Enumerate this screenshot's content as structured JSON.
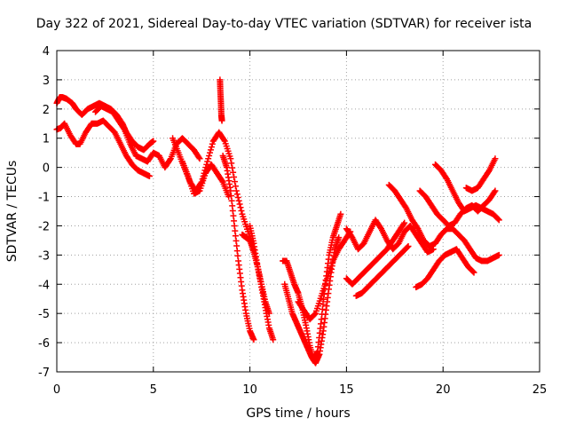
{
  "chart_data": {
    "type": "scatter",
    "title": "Day 322 of 2021, Sidereal Day-to-day VTEC variation (SDTVAR) for receiver ista",
    "xlabel": "GPS time / hours",
    "ylabel": "SDTVAR / TECUs",
    "xlim": [
      0,
      25
    ],
    "ylim": [
      -7,
      4
    ],
    "xticks": [
      0,
      5,
      10,
      15,
      20,
      25
    ],
    "yticks": [
      -7,
      -6,
      -5,
      -4,
      -3,
      -2,
      -1,
      0,
      1,
      2,
      3,
      4
    ],
    "grid": true,
    "marker": "plus",
    "color": "#ff0000",
    "series": [
      {
        "x": [
          0.0,
          0.15,
          0.3,
          0.5,
          0.8,
          1.0,
          1.3,
          1.6,
          1.9,
          2.2,
          2.5,
          2.8,
          3.1,
          3.4,
          3.6,
          3.9,
          4.2,
          4.5,
          4.8,
          5.0
        ],
        "y": [
          2.2,
          2.4,
          2.4,
          2.35,
          2.2,
          2.0,
          1.8,
          2.0,
          2.1,
          2.2,
          2.1,
          2.0,
          1.8,
          1.5,
          1.2,
          0.9,
          0.7,
          0.6,
          0.8,
          0.9
        ]
      },
      {
        "x": [
          0.0,
          0.2,
          0.4,
          0.7,
          1.0,
          1.2,
          1.5,
          1.8,
          2.1,
          2.4,
          2.7,
          3.0,
          3.3,
          3.6,
          3.9,
          4.2,
          4.5,
          4.8
        ],
        "y": [
          1.3,
          1.35,
          1.5,
          1.1,
          0.8,
          0.8,
          1.2,
          1.5,
          1.5,
          1.6,
          1.4,
          1.2,
          0.8,
          0.4,
          0.1,
          -0.1,
          -0.2,
          -0.3
        ]
      },
      {
        "x": [
          2.0,
          2.3,
          2.6,
          2.9,
          3.2,
          3.5,
          3.8,
          4.1,
          4.4,
          4.7,
          5.0,
          5.3,
          5.6,
          5.9,
          6.2,
          6.5,
          6.8,
          7.1,
          7.4
        ],
        "y": [
          1.9,
          2.1,
          2.0,
          1.9,
          1.6,
          1.3,
          0.8,
          0.4,
          0.3,
          0.2,
          0.5,
          0.4,
          0.0,
          0.3,
          0.8,
          1.0,
          0.8,
          0.6,
          0.3
        ]
      },
      {
        "x": [
          6.0,
          6.3,
          6.6,
          6.9,
          7.2,
          7.5,
          7.8,
          8.1,
          8.4,
          8.7,
          9.0,
          9.3,
          9.6,
          9.9,
          10.2
        ],
        "y": [
          1.0,
          0.5,
          0.0,
          -0.5,
          -0.8,
          -0.5,
          0.2,
          0.9,
          1.2,
          0.9,
          0.3,
          -0.8,
          -1.6,
          -2.2,
          -2.8
        ]
      },
      {
        "x": [
          6.5,
          6.8,
          7.1,
          7.4,
          7.7,
          8.0,
          8.3,
          8.6,
          8.9
        ],
        "y": [
          0.2,
          -0.3,
          -0.9,
          -0.8,
          -0.2,
          0.1,
          -0.2,
          -0.5,
          -1.0
        ]
      },
      {
        "x": [
          8.45,
          8.47,
          8.5,
          8.52,
          8.55
        ],
        "y": [
          3.0,
          2.6,
          2.2,
          1.8,
          1.6
        ]
      },
      {
        "x": [
          8.6,
          8.8,
          9.0,
          9.2,
          9.4,
          9.6,
          9.8,
          10.0,
          10.2
        ],
        "y": [
          0.4,
          0.0,
          -0.8,
          -2.0,
          -3.2,
          -4.2,
          -5.0,
          -5.6,
          -5.9
        ]
      },
      {
        "x": [
          9.6,
          9.8,
          10.0,
          10.2,
          10.4,
          10.6,
          10.8,
          11.0,
          11.2
        ],
        "y": [
          -2.3,
          -2.4,
          -2.5,
          -2.9,
          -3.4,
          -4.1,
          -4.8,
          -5.5,
          -5.9
        ]
      },
      {
        "x": [
          10.0,
          10.2,
          10.4,
          10.6,
          10.8,
          11.0
        ],
        "y": [
          -2.0,
          -2.6,
          -3.4,
          -4.0,
          -4.6,
          -5.0
        ]
      },
      {
        "x": [
          11.7,
          11.9,
          12.1,
          12.3,
          12.5,
          12.7,
          12.9,
          13.1,
          13.3,
          13.5,
          13.7,
          13.9,
          14.1,
          14.3,
          14.5,
          14.7
        ],
        "y": [
          -3.2,
          -3.2,
          -3.6,
          -4.0,
          -4.3,
          -4.8,
          -5.4,
          -6.1,
          -6.6,
          -6.3,
          -5.2,
          -4.0,
          -3.0,
          -2.4,
          -2.0,
          -1.6
        ]
      },
      {
        "x": [
          11.8,
          12.0,
          12.2,
          12.4,
          12.6,
          12.8,
          13.0,
          13.2,
          13.4,
          13.6,
          13.8,
          14.0,
          14.2,
          14.4,
          14.6
        ],
        "y": [
          -4.0,
          -4.5,
          -5.0,
          -5.3,
          -5.6,
          -5.9,
          -6.2,
          -6.5,
          -6.7,
          -6.4,
          -5.6,
          -4.6,
          -3.6,
          -2.8,
          -2.4
        ]
      },
      {
        "x": [
          12.5,
          12.8,
          13.1,
          13.4,
          13.7,
          14.0,
          14.3,
          14.6,
          14.9,
          15.2
        ],
        "y": [
          -4.6,
          -4.9,
          -5.2,
          -5.0,
          -4.4,
          -3.8,
          -3.2,
          -2.8,
          -2.5,
          -2.2
        ]
      },
      {
        "x": [
          15.0,
          15.3,
          15.6,
          15.9,
          16.2,
          16.5,
          16.8,
          17.1,
          17.4,
          17.7,
          18.0,
          18.3,
          18.6,
          18.9,
          19.2,
          19.5
        ],
        "y": [
          -2.1,
          -2.4,
          -2.8,
          -2.6,
          -2.2,
          -1.8,
          -2.1,
          -2.5,
          -2.8,
          -2.6,
          -2.2,
          -2.0,
          -2.3,
          -2.6,
          -2.9,
          -2.8
        ]
      },
      {
        "x": [
          15.0,
          15.3,
          15.6,
          15.9,
          16.2,
          16.5,
          16.8,
          17.1,
          17.4,
          17.7,
          18.0
        ],
        "y": [
          -3.8,
          -4.0,
          -3.8,
          -3.6,
          -3.4,
          -3.2,
          -3.0,
          -2.8,
          -2.5,
          -2.2,
          -1.9
        ]
      },
      {
        "x": [
          15.5,
          15.8,
          16.1,
          16.4,
          16.7,
          17.0,
          17.3,
          17.6,
          17.9,
          18.2
        ],
        "y": [
          -4.4,
          -4.3,
          -4.1,
          -3.9,
          -3.7,
          -3.5,
          -3.3,
          -3.1,
          -2.9,
          -2.7
        ]
      },
      {
        "x": [
          17.2,
          17.5,
          17.8,
          18.1,
          18.4,
          18.7,
          19.0,
          19.3,
          19.6,
          19.9,
          20.2,
          20.5,
          20.8,
          21.1,
          21.4,
          21.7,
          22.0,
          22.3,
          22.6,
          22.9
        ],
        "y": [
          -0.6,
          -0.8,
          -1.1,
          -1.4,
          -1.8,
          -2.1,
          -2.5,
          -2.7,
          -2.6,
          -2.3,
          -2.1,
          -2.1,
          -2.3,
          -2.5,
          -2.8,
          -3.1,
          -3.2,
          -3.2,
          -3.1,
          -3.0
        ]
      },
      {
        "x": [
          18.6,
          18.9,
          19.2,
          19.5,
          19.8,
          20.1,
          20.4,
          20.7,
          21.0,
          21.3,
          21.6
        ],
        "y": [
          -4.1,
          -4.0,
          -3.8,
          -3.5,
          -3.2,
          -3.0,
          -2.9,
          -2.8,
          -3.1,
          -3.4,
          -3.6
        ]
      },
      {
        "x": [
          18.8,
          19.1,
          19.4,
          19.7,
          20.0,
          20.3,
          20.6,
          20.9,
          21.2,
          21.5,
          21.8,
          22.1,
          22.4,
          22.7
        ],
        "y": [
          -0.8,
          -1.0,
          -1.3,
          -1.6,
          -1.8,
          -2.0,
          -1.9,
          -1.6,
          -1.4,
          -1.3,
          -1.5,
          -1.3,
          -1.1,
          -0.8
        ]
      },
      {
        "x": [
          19.6,
          19.9,
          20.2,
          20.5,
          20.8,
          21.1,
          21.4,
          21.7,
          22.0,
          22.3,
          22.6,
          22.9
        ],
        "y": [
          0.1,
          -0.1,
          -0.4,
          -0.8,
          -1.2,
          -1.5,
          -1.4,
          -1.3,
          -1.4,
          -1.5,
          -1.6,
          -1.8
        ]
      },
      {
        "x": [
          21.2,
          21.5,
          21.8,
          22.1,
          22.4,
          22.7
        ],
        "y": [
          -0.7,
          -0.8,
          -0.7,
          -0.4,
          -0.1,
          0.3
        ]
      }
    ]
  }
}
